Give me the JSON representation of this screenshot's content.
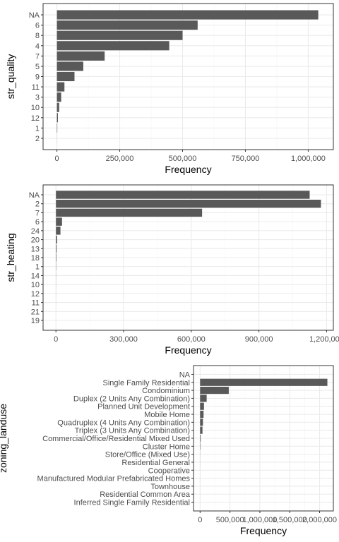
{
  "colors": {
    "bar": "#595959",
    "panel_border": "#333333",
    "grid_major": "#ebebeb",
    "grid_minor": "#f5f5f5",
    "background": "#ffffff"
  },
  "chart_data": [
    {
      "type": "bar",
      "orientation": "horizontal",
      "ylabel": "str_quality",
      "xlabel": "Frequency",
      "categories": [
        "NA",
        "6",
        "8",
        "4",
        "7",
        "5",
        "9",
        "11",
        "3",
        "10",
        "12",
        "1",
        "2"
      ],
      "values": [
        1040000,
        560000,
        500000,
        447000,
        190000,
        105000,
        70000,
        30000,
        17000,
        9000,
        4000,
        1500,
        200
      ],
      "xlim": [
        -55000,
        1100000
      ],
      "x_ticks": [
        {
          "value": 0,
          "label": "0"
        },
        {
          "value": 250000,
          "label": "250,000"
        },
        {
          "value": 500000,
          "label": "500,000"
        },
        {
          "value": 750000,
          "label": "750,000"
        },
        {
          "value": 1000000,
          "label": "1,000,000"
        }
      ],
      "grid": true,
      "theme": "bw"
    },
    {
      "type": "bar",
      "orientation": "horizontal",
      "ylabel": "str_heating",
      "xlabel": "Frequency",
      "categories": [
        "NA",
        "2",
        "7",
        "6",
        "24",
        "20",
        "13",
        "18",
        "1",
        "14",
        "10",
        "12",
        "11",
        "21",
        "19"
      ],
      "values": [
        1125000,
        1175000,
        648000,
        27000,
        20000,
        5000,
        3000,
        2000,
        1000,
        500,
        300,
        200,
        100,
        50,
        20
      ],
      "xlim": [
        -57000,
        1230000
      ],
      "x_ticks": [
        {
          "value": 0,
          "label": "0"
        },
        {
          "value": 300000,
          "label": "300,000"
        },
        {
          "value": 600000,
          "label": "600,000"
        },
        {
          "value": 900000,
          "label": "900,000"
        },
        {
          "value": 1200000,
          "label": "1,200,000"
        }
      ],
      "grid": true,
      "theme": "bw"
    },
    {
      "type": "bar",
      "orientation": "horizontal",
      "ylabel": "zoning_landuse",
      "xlabel": "Frequency",
      "categories": [
        "NA",
        "Single Family Residential",
        "Condominium",
        "Duplex (2 Units Any Combination)",
        "Planned Unit Development",
        "Mobile Home",
        "Quadruplex (4 Units Any Combination)",
        "Triplex (3 Units Any Combination)",
        "Commercial/Office/Residential Mixed Used",
        "Cluster Home",
        "Store/Office (Mixed Use)",
        "Residential General",
        "Cooperative",
        "Manufactured Modular Prefabricated Homes",
        "Townhouse",
        "Residential Common Area",
        "Inferred Single Family Residential"
      ],
      "values": [
        0,
        2130000,
        480000,
        110000,
        65000,
        58000,
        48000,
        40000,
        10000,
        6000,
        1500,
        1000,
        500,
        300,
        200,
        100,
        50
      ],
      "xlim": [
        -110000,
        2230000
      ],
      "x_ticks": [
        {
          "value": 0,
          "label": "0"
        },
        {
          "value": 500000,
          "label": "500,000"
        },
        {
          "value": 1000000,
          "label": "1,000,000"
        },
        {
          "value": 1500000,
          "label": "1,500,000"
        },
        {
          "value": 2000000,
          "label": "2,000,000"
        }
      ],
      "grid": true,
      "theme": "bw"
    }
  ]
}
